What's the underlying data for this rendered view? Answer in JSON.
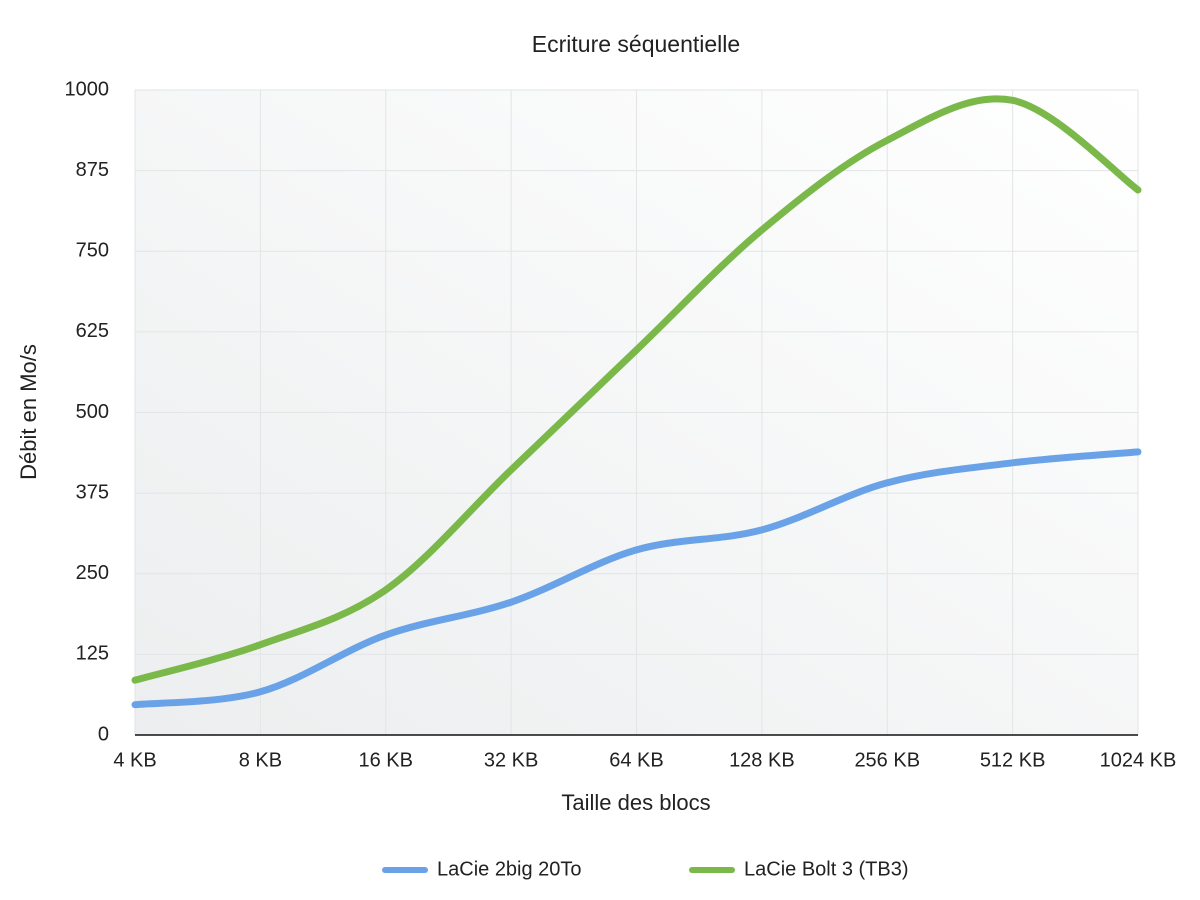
{
  "chart_data": {
    "type": "line",
    "title": "Ecriture séquentielle",
    "x_label": "Taille des blocs",
    "y_label": "Débit en Mo/s",
    "categories": [
      "4 KB",
      "8 KB",
      "16 KB",
      "32 KB",
      "64 KB",
      "128 KB",
      "256 KB",
      "512 KB",
      "1024 KB"
    ],
    "series": [
      {
        "name": "LaCie 2big 20To",
        "color": "#6aa2e8",
        "values": [
          47,
          67,
          155,
          206,
          287,
          318,
          391,
          422,
          439
        ]
      },
      {
        "name": "LaCie Bolt 3 (TB3)",
        "color": "#7bb84a",
        "values": [
          85,
          140,
          225,
          411,
          597,
          783,
          922,
          984,
          845
        ]
      }
    ],
    "ylim": [
      0,
      1000
    ],
    "yticks": [
      0,
      125,
      250,
      375,
      500,
      625,
      750,
      875,
      1000
    ],
    "grid": true,
    "legend": "bottom"
  }
}
